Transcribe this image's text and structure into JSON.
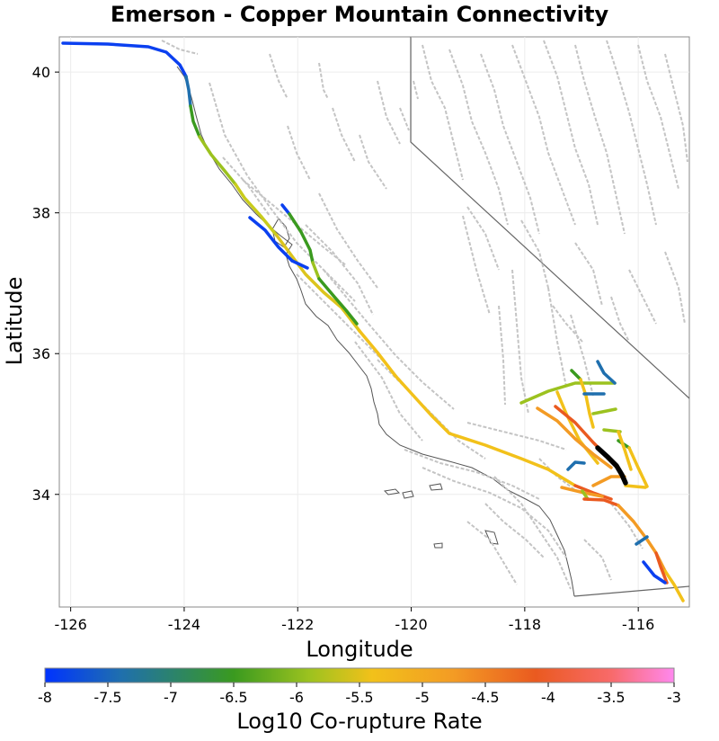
{
  "title": "Emerson - Copper Mountain Connectivity",
  "axes": {
    "xlabel": "Longitude",
    "ylabel": "Latitude",
    "xticks": [
      "-126",
      "-124",
      "-122",
      "-120",
      "-118",
      "-116"
    ],
    "xtick_values": [
      -126,
      -124,
      -122,
      -120,
      -118,
      -116
    ],
    "yticks": [
      "34",
      "36",
      "38",
      "40"
    ],
    "ytick_values": [
      34,
      36,
      38,
      40
    ],
    "xlim": [
      -126.2,
      -115.1
    ],
    "ylim": [
      32.4,
      40.5
    ],
    "grid": true
  },
  "colorbar": {
    "label": "Log10 Co-rupture Rate",
    "ticks": [
      "-8",
      "-7.5",
      "-7",
      "-6.5",
      "-6",
      "-5.5",
      "-5",
      "-4.5",
      "-4",
      "-3.5",
      "-3"
    ],
    "range": [
      -8,
      -3
    ],
    "colors": [
      "#0033ff",
      "#1f6fae",
      "#3a9a1f",
      "#9cc21f",
      "#f2c11a",
      "#f39b24",
      "#ea5a20",
      "#f86a6a",
      "#ff88ee"
    ]
  }
}
